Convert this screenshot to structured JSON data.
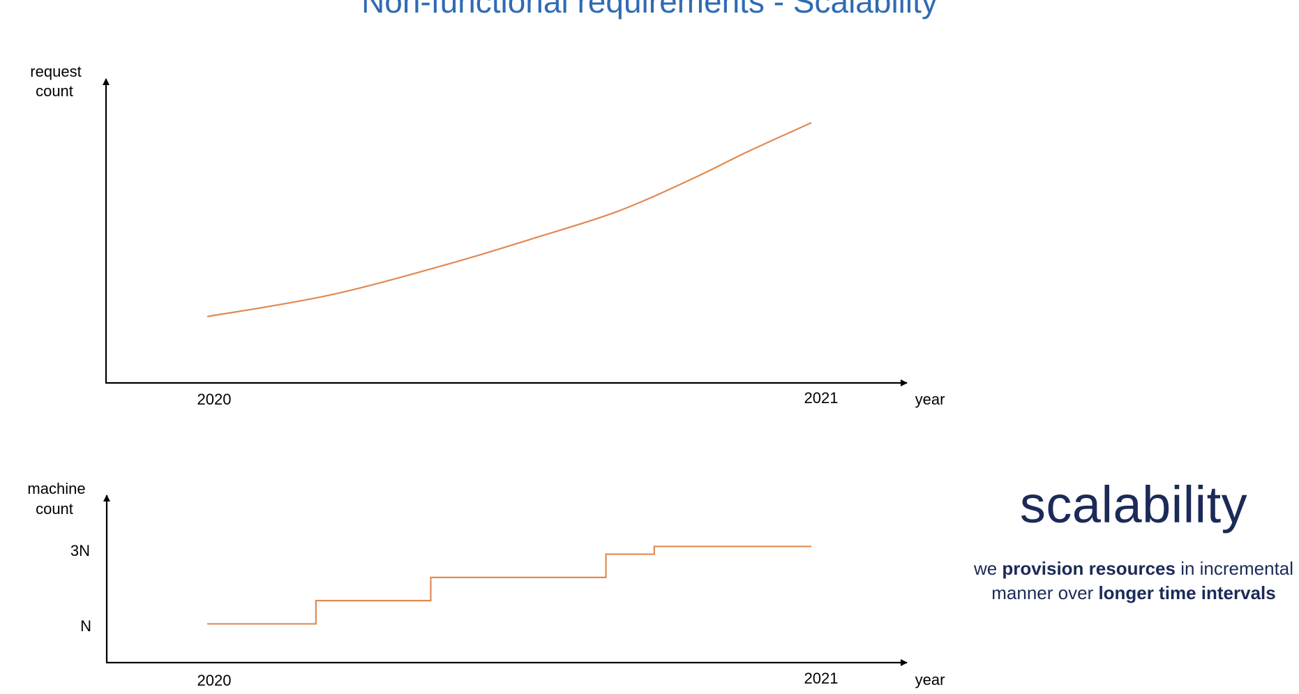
{
  "title": "Non-functional requirements - Scalability",
  "side_panel": {
    "heading": "scalability",
    "line1": {
      "pre": "we ",
      "bold": "provision resources",
      "post": " in incremental"
    },
    "line2": {
      "pre": "manner over ",
      "bold": "longer time intervals",
      "post": ""
    }
  },
  "colors": {
    "title": "#2f6bb3",
    "heading": "#1b2a57",
    "curve": "#e08a52",
    "axis": "#000000"
  },
  "chart_data": [
    {
      "type": "line",
      "ylabel": [
        "request",
        "count"
      ],
      "xlabel": "year",
      "x_ticks": [
        "2020",
        "2021"
      ],
      "note": "smooth increasing curve, no numeric y scale shown",
      "series": [
        {
          "values": [
            [
              2020.0,
              0.08
            ],
            [
              2020.2,
              0.18
            ],
            [
              2020.4,
              0.33
            ],
            [
              2020.55,
              0.46
            ],
            [
              2020.68,
              0.58
            ],
            [
              2020.8,
              0.73
            ],
            [
              2020.9,
              0.87
            ],
            [
              2021.0,
              1.0
            ]
          ]
        }
      ]
    },
    {
      "type": "line",
      "ylabel": [
        "machine",
        "count"
      ],
      "xlabel": "year",
      "x_ticks": [
        "2020",
        "2021"
      ],
      "y_ticks": [
        {
          "label": "N",
          "value": 1
        },
        {
          "label": "3N",
          "value": 3
        }
      ],
      "note": "step function of provisioned machines",
      "series": [
        {
          "steps": [
            {
              "x_start": 2020.0,
              "x_end": 2020.18,
              "y": 1.1
            },
            {
              "x_start": 2020.18,
              "x_end": 2020.37,
              "y": 1.7
            },
            {
              "x_start": 2020.37,
              "x_end": 2020.66,
              "y": 2.3
            },
            {
              "x_start": 2020.66,
              "x_end": 2020.74,
              "y": 2.9
            },
            {
              "x_start": 2020.74,
              "x_end": 2021.0,
              "y": 3.1
            }
          ]
        }
      ]
    }
  ]
}
